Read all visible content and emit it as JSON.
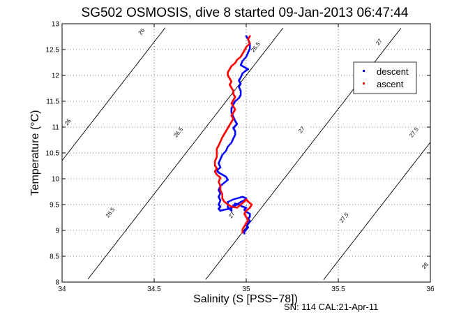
{
  "chart_data": {
    "type": "scatter",
    "title": "SG502 OSMOSIS, dive 8 started 09-Jan-2013 06:47:44",
    "xlabel": "Salinity (S [PSS−78])",
    "ylabel": "Temperature (°C)",
    "xlim": [
      34,
      36
    ],
    "ylim": [
      8,
      13
    ],
    "xticks": [
      34,
      34.5,
      35,
      35.5,
      36
    ],
    "xtick_labels": [
      "34",
      "34.5",
      "35",
      "35.5",
      "36"
    ],
    "yticks": [
      8,
      8.5,
      9,
      9.5,
      10,
      10.5,
      11,
      11.5,
      12,
      12.5,
      13
    ],
    "ytick_labels": [
      "8",
      "8.5",
      "9",
      "9.5",
      "10",
      "10.5",
      "11",
      "11.5",
      "12",
      "12.5",
      "13"
    ],
    "grid": true,
    "legend_position": "top-right",
    "series": [
      {
        "name": "descent",
        "color": "#0000ff",
        "points": [
          [
            34.99,
            8.94
          ],
          [
            34.99,
            8.98
          ],
          [
            35.0,
            9.02
          ],
          [
            35.01,
            9.06
          ],
          [
            35.0,
            9.1
          ],
          [
            35.01,
            9.14
          ],
          [
            35.02,
            9.18
          ],
          [
            35.01,
            9.22
          ],
          [
            35.02,
            9.27
          ],
          [
            35.02,
            9.32
          ],
          [
            35.0,
            9.36
          ],
          [
            34.99,
            9.4
          ],
          [
            35.0,
            9.44
          ],
          [
            34.98,
            9.46
          ],
          [
            34.96,
            9.5
          ],
          [
            34.94,
            9.52
          ],
          [
            34.92,
            9.44
          ],
          [
            34.92,
            9.38
          ],
          [
            34.9,
            9.45
          ],
          [
            34.9,
            9.55
          ],
          [
            34.93,
            9.6
          ],
          [
            34.96,
            9.63
          ],
          [
            34.98,
            9.65
          ],
          [
            35.0,
            9.62
          ],
          [
            34.99,
            9.58
          ],
          [
            34.97,
            9.55
          ],
          [
            34.95,
            9.5
          ],
          [
            34.93,
            9.46
          ],
          [
            34.91,
            9.42
          ],
          [
            34.88,
            9.4
          ],
          [
            34.86,
            9.38
          ],
          [
            34.85,
            9.42
          ],
          [
            34.86,
            9.46
          ],
          [
            34.85,
            9.5
          ],
          [
            34.86,
            9.58
          ],
          [
            34.85,
            9.65
          ],
          [
            34.86,
            9.72
          ],
          [
            34.85,
            9.78
          ],
          [
            34.86,
            9.86
          ],
          [
            34.88,
            9.92
          ],
          [
            34.9,
            9.98
          ],
          [
            34.89,
            10.04
          ],
          [
            34.87,
            10.08
          ],
          [
            34.85,
            10.12
          ],
          [
            34.84,
            10.16
          ],
          [
            34.86,
            10.22
          ],
          [
            34.85,
            10.3
          ],
          [
            34.86,
            10.38
          ],
          [
            34.87,
            10.46
          ],
          [
            34.89,
            10.54
          ],
          [
            34.9,
            10.62
          ],
          [
            34.92,
            10.7
          ],
          [
            34.93,
            10.78
          ],
          [
            34.94,
            10.85
          ],
          [
            34.94,
            10.92
          ],
          [
            34.93,
            10.98
          ],
          [
            34.94,
            11.02
          ],
          [
            34.95,
            11.06
          ],
          [
            34.94,
            11.12
          ],
          [
            34.93,
            11.2
          ],
          [
            34.92,
            11.28
          ],
          [
            34.92,
            11.36
          ],
          [
            34.93,
            11.44
          ],
          [
            34.94,
            11.5
          ],
          [
            34.96,
            11.56
          ],
          [
            34.97,
            11.62
          ],
          [
            34.97,
            11.7
          ],
          [
            34.96,
            11.78
          ],
          [
            34.97,
            11.84
          ],
          [
            34.96,
            11.9
          ],
          [
            34.97,
            11.96
          ],
          [
            34.98,
            12.04
          ],
          [
            35.0,
            12.1
          ],
          [
            35.01,
            12.12
          ],
          [
            34.99,
            12.16
          ],
          [
            34.97,
            12.2
          ],
          [
            34.98,
            12.28
          ],
          [
            35.0,
            12.36
          ],
          [
            35.01,
            12.44
          ],
          [
            35.02,
            12.52
          ],
          [
            35.02,
            12.6
          ],
          [
            35.01,
            12.7
          ],
          [
            35.0,
            12.76
          ]
        ]
      },
      {
        "name": "ascent",
        "color": "#ff0000",
        "points": [
          [
            35.02,
            12.76
          ],
          [
            35.01,
            12.7
          ],
          [
            35.02,
            12.62
          ],
          [
            35.0,
            12.55
          ],
          [
            34.99,
            12.48
          ],
          [
            34.98,
            12.42
          ],
          [
            34.97,
            12.36
          ],
          [
            34.95,
            12.3
          ],
          [
            34.94,
            12.24
          ],
          [
            34.92,
            12.18
          ],
          [
            34.91,
            12.12
          ],
          [
            34.9,
            12.06
          ],
          [
            34.9,
            12.0
          ],
          [
            34.91,
            11.94
          ],
          [
            34.92,
            11.88
          ],
          [
            34.91,
            11.82
          ],
          [
            34.92,
            11.76
          ],
          [
            34.93,
            11.7
          ],
          [
            34.93,
            11.64
          ],
          [
            34.94,
            11.58
          ],
          [
            34.93,
            11.52
          ],
          [
            34.92,
            11.46
          ],
          [
            34.93,
            11.4
          ],
          [
            34.94,
            11.34
          ],
          [
            34.93,
            11.28
          ],
          [
            34.92,
            11.22
          ],
          [
            34.93,
            11.16
          ],
          [
            34.92,
            11.1
          ],
          [
            34.91,
            11.04
          ],
          [
            34.9,
            10.98
          ],
          [
            34.89,
            10.92
          ],
          [
            34.88,
            10.86
          ],
          [
            34.87,
            10.8
          ],
          [
            34.86,
            10.72
          ],
          [
            34.85,
            10.64
          ],
          [
            34.84,
            10.58
          ],
          [
            34.84,
            10.5
          ],
          [
            34.84,
            10.42
          ],
          [
            34.83,
            10.34
          ],
          [
            34.83,
            10.26
          ],
          [
            34.84,
            10.2
          ],
          [
            34.83,
            10.14
          ],
          [
            34.84,
            10.08
          ],
          [
            34.86,
            10.02
          ],
          [
            34.85,
            9.94
          ],
          [
            34.86,
            9.86
          ],
          [
            34.86,
            9.78
          ],
          [
            34.87,
            9.7
          ],
          [
            34.87,
            9.62
          ],
          [
            34.88,
            9.56
          ],
          [
            34.9,
            9.5
          ],
          [
            34.92,
            9.46
          ],
          [
            34.95,
            9.44
          ],
          [
            34.97,
            9.5
          ],
          [
            34.99,
            9.56
          ],
          [
            35.0,
            9.6
          ],
          [
            35.01,
            9.56
          ],
          [
            35.03,
            9.5
          ],
          [
            35.02,
            9.44
          ],
          [
            35.0,
            9.38
          ],
          [
            34.99,
            9.32
          ],
          [
            35.0,
            9.26
          ],
          [
            35.01,
            9.2
          ],
          [
            35.0,
            9.14
          ],
          [
            34.99,
            9.08
          ],
          [
            34.98,
            9.02
          ],
          [
            34.98,
            8.96
          ]
        ]
      }
    ],
    "density_contours": [
      {
        "label": "26",
        "sigma": 26
      },
      {
        "label": "26.5",
        "sigma": 26.5
      },
      {
        "label": "27",
        "sigma": 27
      },
      {
        "label": "27.5",
        "sigma": 27.5
      },
      {
        "label": "28",
        "sigma": 28
      }
    ],
    "contour_label_positions": [
      {
        "text": "26",
        "s": 34.43,
        "t": 12.85
      },
      {
        "text": "26",
        "s": 34.03,
        "t": 11.1
      },
      {
        "text": "26.5",
        "s": 35.05,
        "t": 12.55
      },
      {
        "text": "26.5",
        "s": 34.63,
        "t": 10.9
      },
      {
        "text": "26.5",
        "s": 34.26,
        "t": 9.35
      },
      {
        "text": "27",
        "s": 35.72,
        "t": 12.65
      },
      {
        "text": "27",
        "s": 35.3,
        "t": 10.95
      },
      {
        "text": "27",
        "s": 34.92,
        "t": 9.3
      },
      {
        "text": "27.5",
        "s": 35.91,
        "t": 10.9
      },
      {
        "text": "27.5",
        "s": 35.53,
        "t": 9.25
      },
      {
        "text": "28",
        "s": 35.97,
        "t": 8.32
      }
    ],
    "annotation": "SN: 114  CAL:21-Apr-11"
  }
}
